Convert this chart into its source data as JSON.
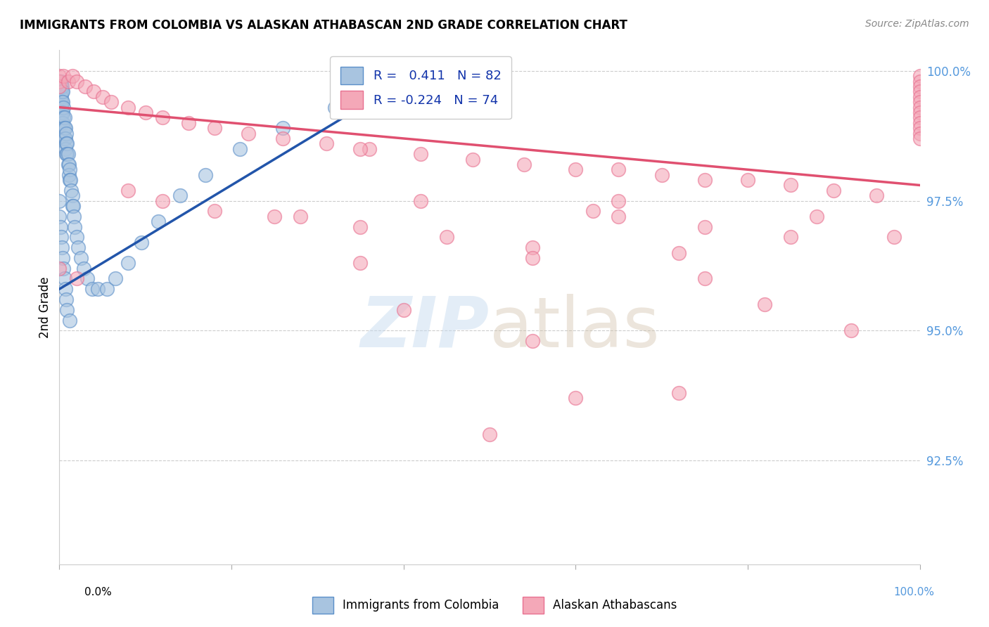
{
  "title": "IMMIGRANTS FROM COLOMBIA VS ALASKAN ATHABASCAN 2ND GRADE CORRELATION CHART",
  "source": "Source: ZipAtlas.com",
  "ylabel": "2nd Grade",
  "blue_color": "#A8C4E0",
  "pink_color": "#F4A8B8",
  "blue_edge_color": "#5B8FC9",
  "pink_edge_color": "#E87090",
  "blue_line_color": "#2255AA",
  "pink_line_color": "#E05070",
  "watermark_color": "#C8DCF0",
  "ytick_color": "#5599DD",
  "xlim": [
    0.0,
    1.0
  ],
  "ylim": [
    0.905,
    1.004
  ],
  "yticks": [
    0.925,
    0.95,
    0.975,
    1.0
  ],
  "ytick_labels": [
    "92.5%",
    "95.0%",
    "97.5%",
    "100.0%"
  ],
  "blue_x": [
    0.0,
    0.0,
    0.0,
    0.0,
    0.0,
    0.001,
    0.001,
    0.001,
    0.001,
    0.001,
    0.001,
    0.002,
    0.002,
    0.002,
    0.002,
    0.002,
    0.003,
    0.003,
    0.003,
    0.003,
    0.003,
    0.004,
    0.004,
    0.004,
    0.004,
    0.005,
    0.005,
    0.005,
    0.005,
    0.006,
    0.006,
    0.006,
    0.007,
    0.007,
    0.007,
    0.008,
    0.008,
    0.008,
    0.009,
    0.009,
    0.01,
    0.01,
    0.011,
    0.011,
    0.012,
    0.012,
    0.013,
    0.014,
    0.015,
    0.015,
    0.016,
    0.017,
    0.018,
    0.02,
    0.022,
    0.025,
    0.028,
    0.032,
    0.038,
    0.045,
    0.055,
    0.065,
    0.08,
    0.095,
    0.115,
    0.14,
    0.17,
    0.21,
    0.26,
    0.32,
    0.0,
    0.0,
    0.001,
    0.002,
    0.003,
    0.004,
    0.005,
    0.006,
    0.007,
    0.008,
    0.009,
    0.012
  ],
  "blue_y": [
    0.998,
    0.997,
    0.996,
    0.994,
    0.993,
    0.998,
    0.997,
    0.996,
    0.994,
    0.992,
    0.99,
    0.998,
    0.997,
    0.995,
    0.993,
    0.991,
    0.997,
    0.996,
    0.994,
    0.992,
    0.99,
    0.996,
    0.994,
    0.992,
    0.99,
    0.993,
    0.991,
    0.989,
    0.987,
    0.991,
    0.989,
    0.987,
    0.989,
    0.987,
    0.985,
    0.988,
    0.986,
    0.984,
    0.986,
    0.984,
    0.984,
    0.982,
    0.982,
    0.98,
    0.981,
    0.979,
    0.979,
    0.977,
    0.976,
    0.974,
    0.974,
    0.972,
    0.97,
    0.968,
    0.966,
    0.964,
    0.962,
    0.96,
    0.958,
    0.958,
    0.958,
    0.96,
    0.963,
    0.967,
    0.971,
    0.976,
    0.98,
    0.985,
    0.989,
    0.993,
    0.975,
    0.972,
    0.97,
    0.968,
    0.966,
    0.964,
    0.962,
    0.96,
    0.958,
    0.956,
    0.954,
    0.952
  ],
  "pink_x": [
    0.0,
    0.0,
    0.0,
    0.005,
    0.01,
    0.015,
    0.02,
    0.03,
    0.04,
    0.05,
    0.06,
    0.08,
    0.1,
    0.12,
    0.15,
    0.18,
    0.22,
    0.26,
    0.31,
    0.36,
    0.42,
    0.48,
    0.54,
    0.6,
    0.65,
    0.7,
    0.75,
    0.8,
    0.85,
    0.9,
    0.95,
    1.0,
    1.0,
    1.0,
    1.0,
    1.0,
    1.0,
    1.0,
    1.0,
    1.0,
    1.0,
    1.0,
    1.0,
    1.0,
    0.08,
    0.12,
    0.18,
    0.25,
    0.35,
    0.45,
    0.55,
    0.0,
    0.02,
    0.55,
    0.65,
    0.75,
    0.85,
    0.4,
    0.6,
    0.72,
    0.82,
    0.92,
    0.97,
    0.5,
    0.62,
    0.42,
    0.35,
    0.28,
    0.72,
    0.88,
    0.35,
    0.55,
    0.65,
    0.75
  ],
  "pink_y": [
    0.999,
    0.998,
    0.997,
    0.999,
    0.998,
    0.999,
    0.998,
    0.997,
    0.996,
    0.995,
    0.994,
    0.993,
    0.992,
    0.991,
    0.99,
    0.989,
    0.988,
    0.987,
    0.986,
    0.985,
    0.984,
    0.983,
    0.982,
    0.981,
    0.981,
    0.98,
    0.979,
    0.979,
    0.978,
    0.977,
    0.976,
    0.999,
    0.998,
    0.997,
    0.996,
    0.995,
    0.994,
    0.993,
    0.992,
    0.991,
    0.99,
    0.989,
    0.988,
    0.987,
    0.977,
    0.975,
    0.973,
    0.972,
    0.97,
    0.968,
    0.966,
    0.962,
    0.96,
    0.948,
    0.975,
    0.97,
    0.968,
    0.954,
    0.937,
    0.965,
    0.955,
    0.95,
    0.968,
    0.93,
    0.973,
    0.975,
    0.963,
    0.972,
    0.938,
    0.972,
    0.985,
    0.964,
    0.972,
    0.96
  ]
}
